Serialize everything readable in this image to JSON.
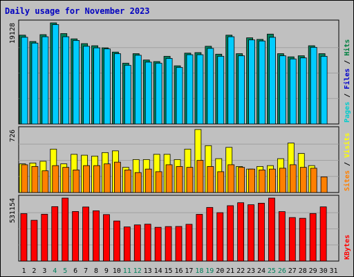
{
  "chart_data": {
    "type": "bar",
    "title": "Daily usage for November 2023",
    "categories": [
      "1",
      "2",
      "3",
      "4",
      "5",
      "6",
      "7",
      "8",
      "9",
      "10",
      "11",
      "12",
      "13",
      "14",
      "15",
      "16",
      "17",
      "18",
      "19",
      "20",
      "21",
      "22",
      "23",
      "24",
      "25",
      "26",
      "27",
      "28",
      "29",
      "30",
      "31"
    ],
    "weekend_days": [
      "4",
      "5",
      "11",
      "12",
      "18",
      "19",
      "25",
      "26"
    ],
    "panels": [
      {
        "id": "hits-panel",
        "max_label": "19128",
        "ymax": 19128,
        "legend": [
          {
            "name": "Pages",
            "color": "#00cccc"
          },
          {
            "name": "Files",
            "color": "#0000cc"
          },
          {
            "name": "Hits",
            "color": "#008040"
          }
        ],
        "series": [
          {
            "name": "Hits",
            "color": "#00805c",
            "values": [
              16800,
              15600,
              16900,
              19128,
              17100,
              16100,
              15200,
              14800,
              14400,
              13600,
              11500,
              13300,
              12100,
              11800,
              12800,
              11000,
              13400,
              13500,
              14700,
              13200,
              16800,
              13300,
              16300,
              16000,
              17000,
              13300,
              12700,
              12900,
              14800,
              13300,
              null
            ]
          },
          {
            "name": "Files",
            "color": "#00ccff",
            "values": [
              16400,
              15300,
              16500,
              18800,
              16500,
              15800,
              14700,
              14400,
              14200,
              13300,
              11100,
              13000,
              11700,
              11500,
              12400,
              10700,
              13100,
              13100,
              14300,
              12800,
              16500,
              12900,
              15900,
              15700,
              16400,
              12900,
              12300,
              12500,
              14500,
              12800,
              null
            ]
          }
        ]
      },
      {
        "id": "visits-panel",
        "max_label": "726",
        "ymax": 726,
        "legend": [
          {
            "name": "Sites",
            "color": "#ff8000"
          },
          {
            "name": "Visits",
            "color": "#ffff00"
          }
        ],
        "series": [
          {
            "name": "Visits",
            "color": "#ffff00",
            "values": [
              330,
              340,
              360,
              500,
              330,
              440,
              430,
              420,
              460,
              480,
              290,
              380,
              380,
              440,
              440,
              380,
              500,
              726,
              540,
              390,
              520,
              300,
              270,
              300,
              310,
              390,
              570,
              450,
              310,
              null,
              null
            ]
          },
          {
            "name": "Sites",
            "color": "#ff8000",
            "values": [
              320,
              300,
              250,
              310,
              290,
              260,
              310,
              310,
              330,
              350,
              260,
              230,
              270,
              240,
              320,
              300,
              290,
              370,
              300,
              240,
              320,
              290,
              270,
              260,
              270,
              280,
              320,
              290,
              280,
              180,
              null
            ]
          }
        ]
      },
      {
        "id": "kbytes-panel",
        "max_label": "531154",
        "ymax": 531154,
        "legend": [
          {
            "name": "KBytes",
            "color": "#ff0000"
          }
        ],
        "series": [
          {
            "name": "KBytes",
            "color": "#ff0000",
            "values": [
              400000,
              344000,
              395000,
              459000,
              531154,
              418000,
              456000,
              424000,
              392000,
              338000,
              288000,
              305000,
              311000,
              285000,
              291000,
              292000,
              310000,
              394000,
              452000,
              408000,
              467000,
              492000,
              475000,
              488000,
              531154,
              417000,
              367000,
              361000,
              401000,
              457000,
              null
            ]
          }
        ]
      }
    ]
  }
}
